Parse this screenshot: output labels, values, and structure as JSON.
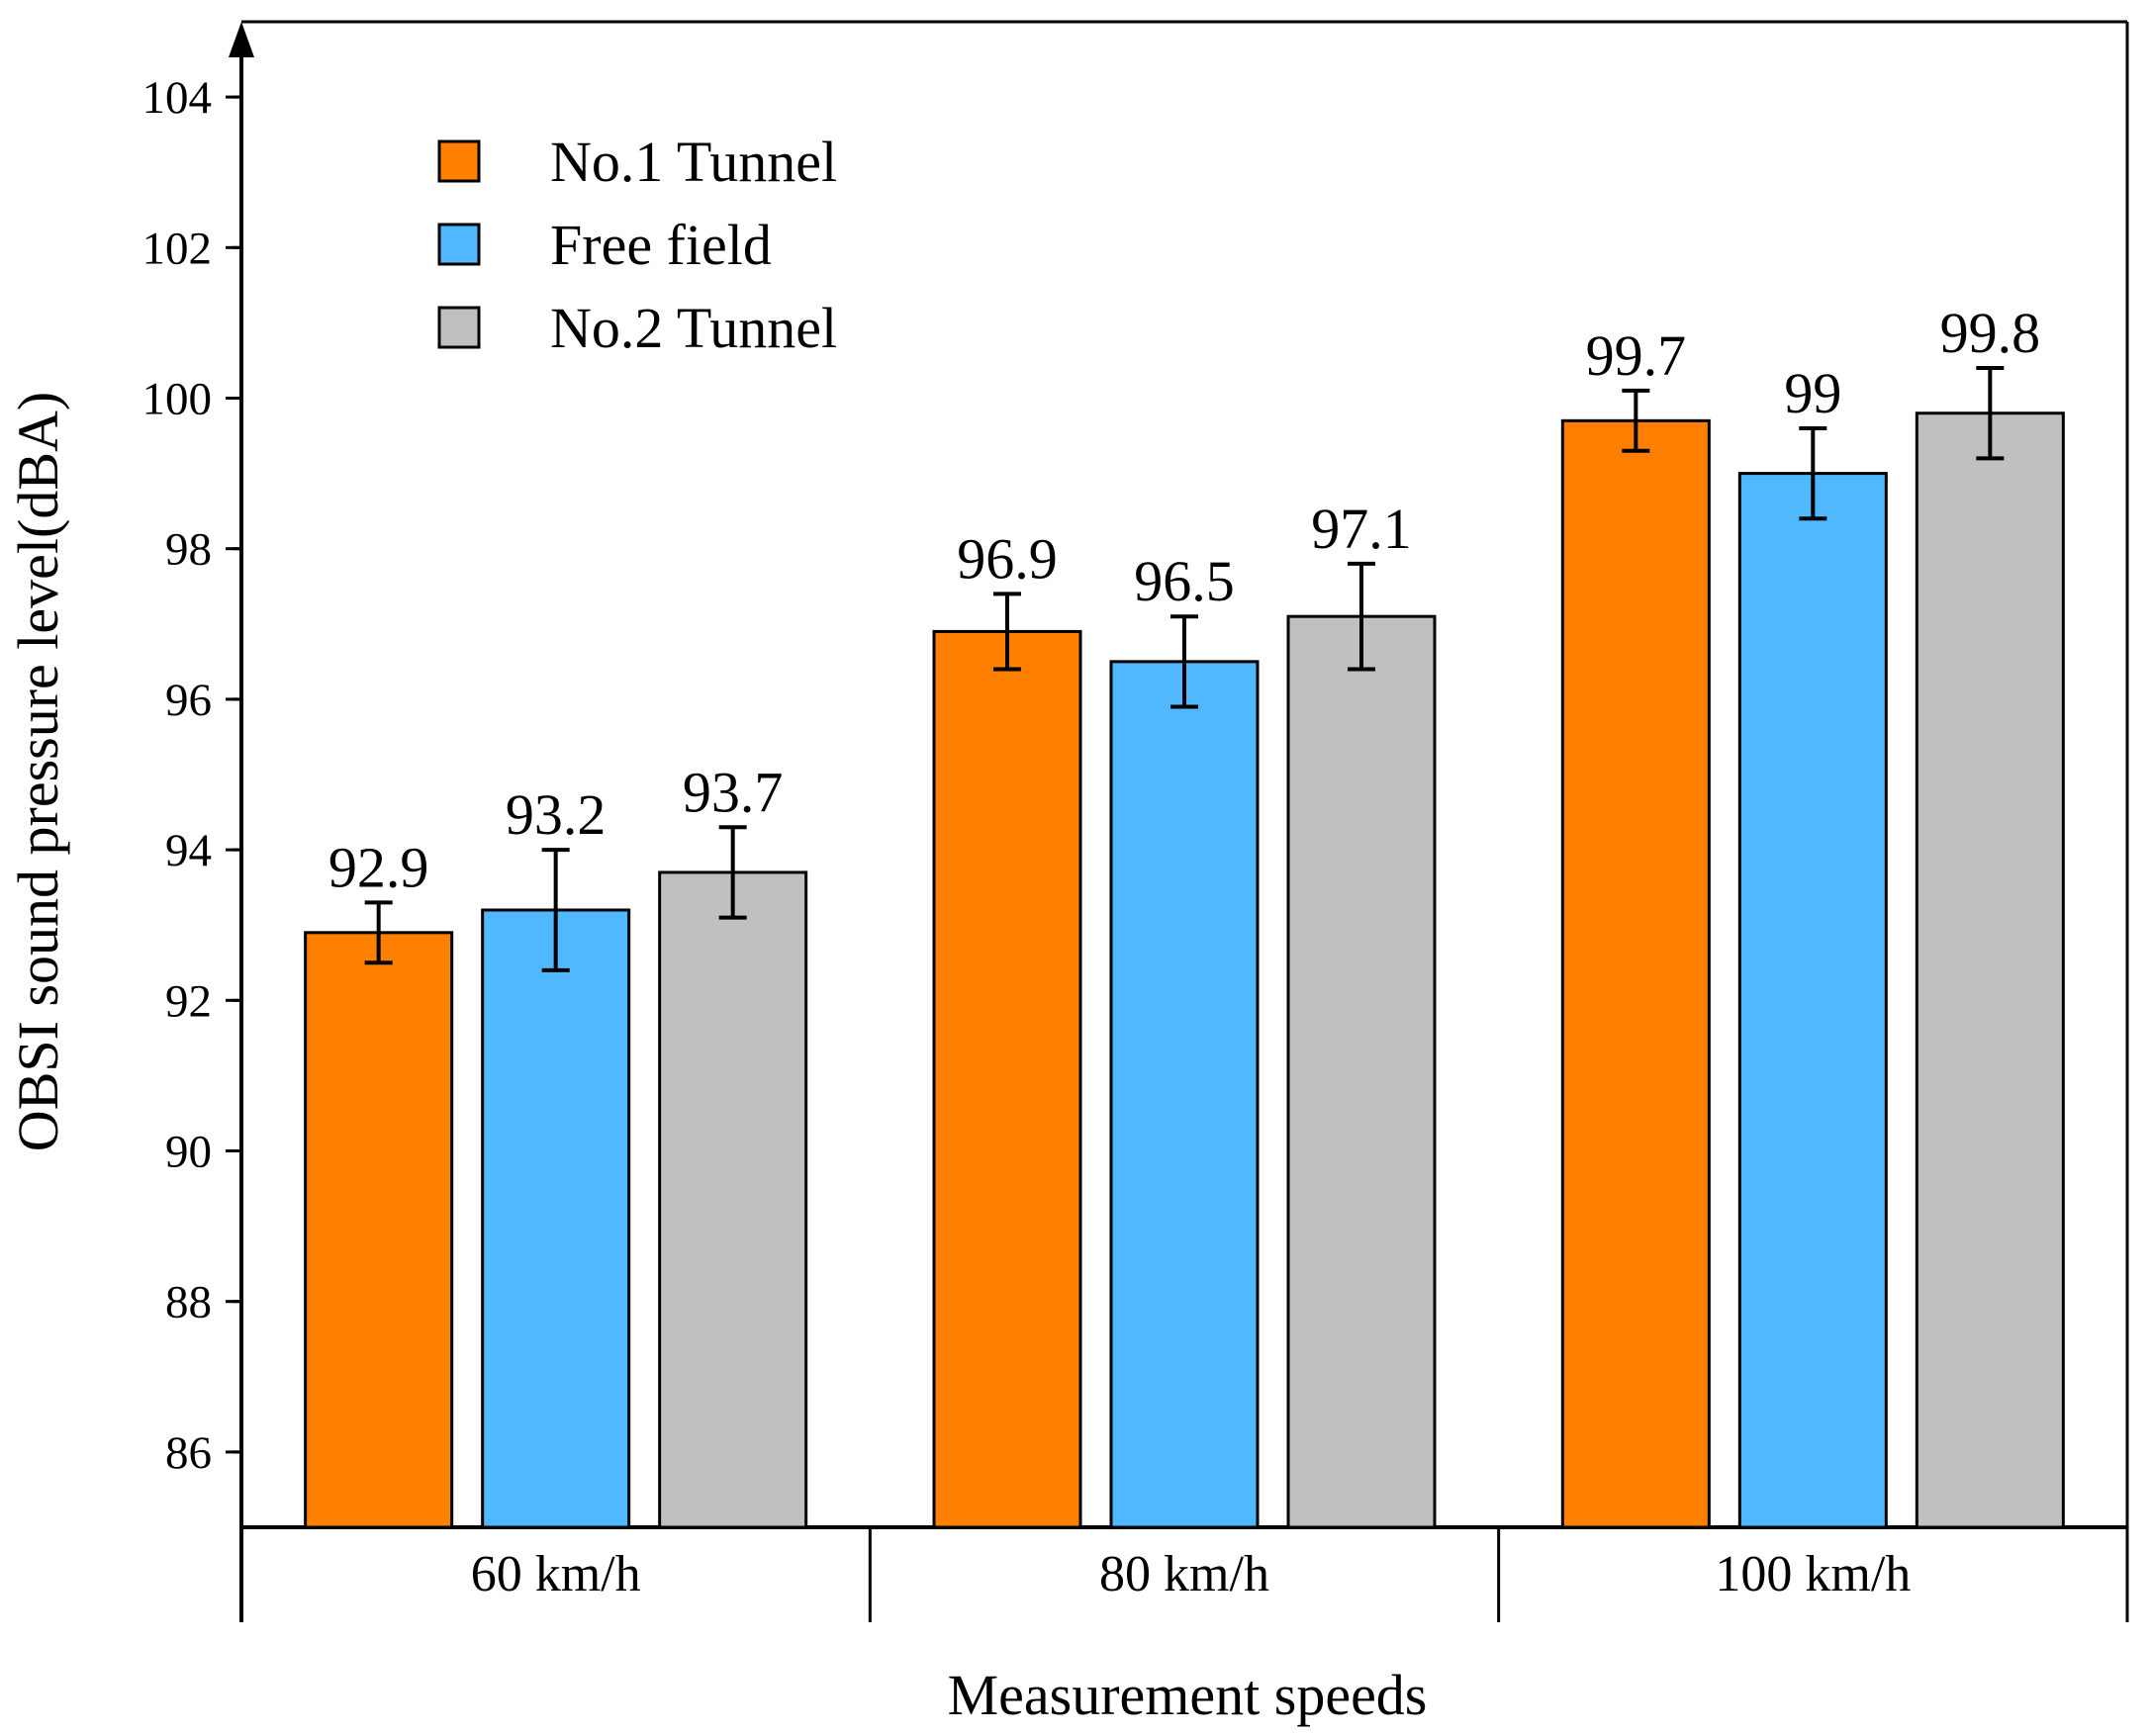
{
  "chart_data": {
    "type": "bar",
    "xlabel": "Measurement speeds",
    "ylabel": "OBSI sound pressure level(dBA)",
    "categories": [
      "60 km/h",
      "80 km/h",
      "100 km/h"
    ],
    "ylim": [
      85,
      105
    ],
    "yticks": [
      86,
      88,
      90,
      92,
      94,
      96,
      98,
      100,
      102,
      104
    ],
    "legend_position": "top-left",
    "grid": false,
    "series": [
      {
        "name": "No.1 Tunnel",
        "color": "#FF7F00",
        "values": [
          92.9,
          96.9,
          99.7
        ],
        "labels": [
          "92.9",
          "96.9",
          "99.7"
        ],
        "error_low": [
          92.5,
          96.4,
          99.3
        ],
        "error_high": [
          93.3,
          97.4,
          100.1
        ]
      },
      {
        "name": "Free field",
        "color": "#4FB8FF",
        "values": [
          93.2,
          96.5,
          99.0
        ],
        "labels": [
          "93.2",
          "96.5",
          "99"
        ],
        "error_low": [
          92.4,
          95.9,
          98.4
        ],
        "error_high": [
          94.0,
          97.1,
          99.6
        ]
      },
      {
        "name": "No.2 Tunnel",
        "color": "#C0C0C0",
        "values": [
          93.7,
          97.1,
          99.8
        ],
        "labels": [
          "93.7",
          "97.1",
          "99.8"
        ],
        "error_low": [
          93.1,
          96.4,
          99.2
        ],
        "error_high": [
          94.3,
          97.8,
          100.4
        ]
      }
    ]
  }
}
